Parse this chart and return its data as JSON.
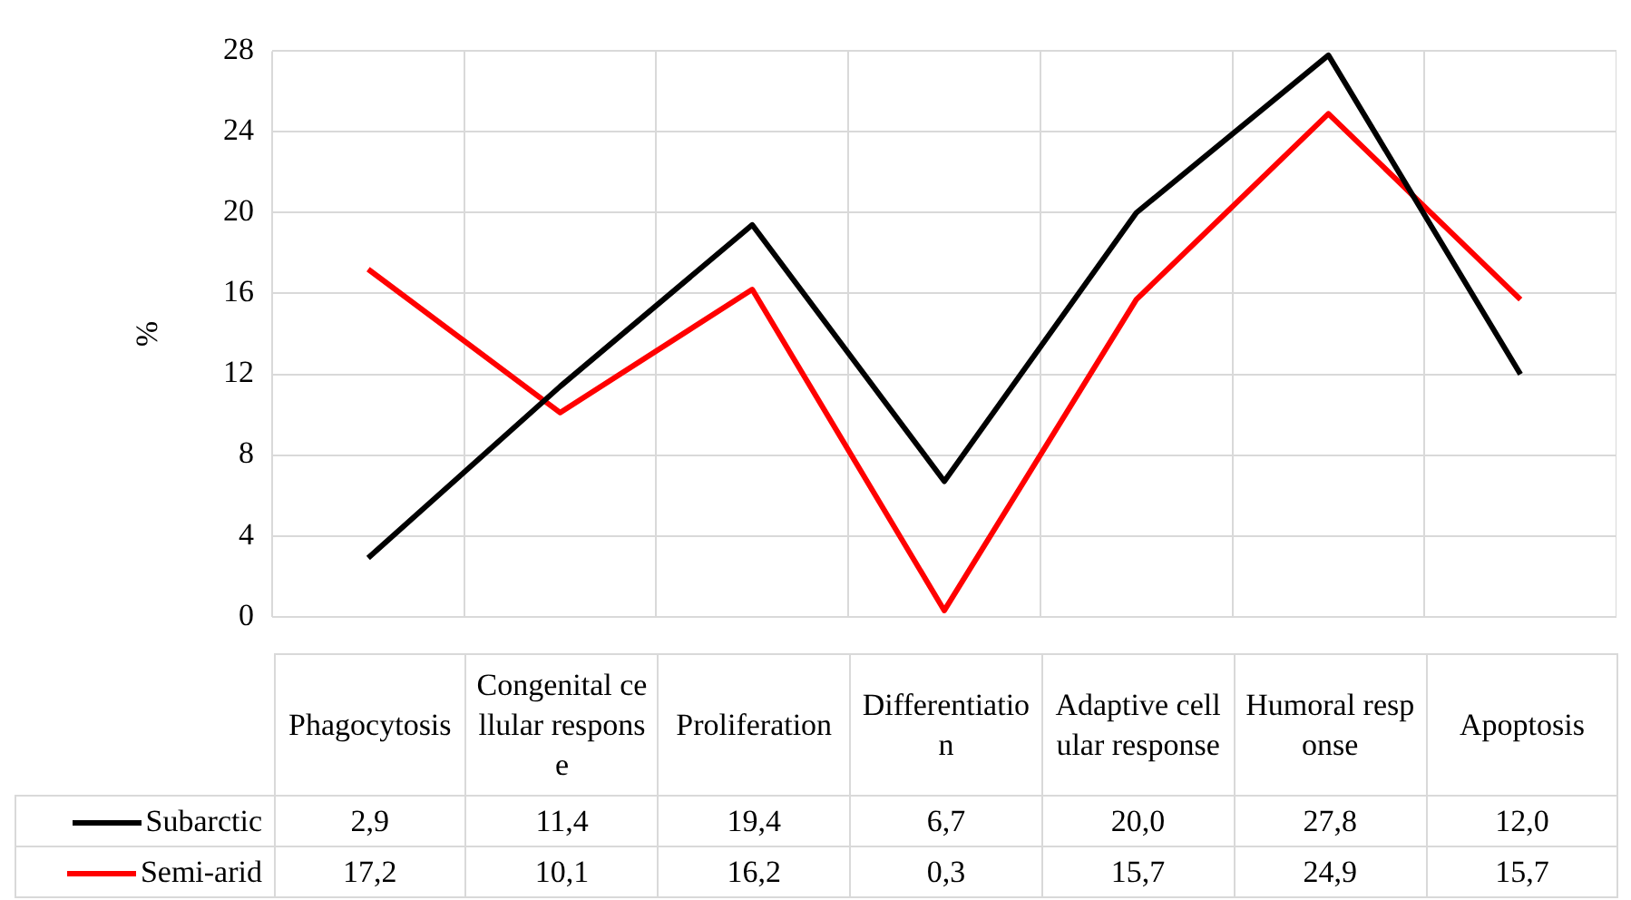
{
  "chart_data": {
    "type": "line",
    "ylabel": "%",
    "categories": [
      "Phagocytosis",
      "Congenital cellular response",
      "Proliferation",
      "Differentiation",
      "Adaptive cellular response",
      "Humoral response",
      "Apoptosis"
    ],
    "series": [
      {
        "name": "Subarctic",
        "color": "#000000",
        "values": [
          2.9,
          11.4,
          19.4,
          6.7,
          20.0,
          27.8,
          12.0
        ],
        "value_labels": [
          "2,9",
          "11,4",
          "19,4",
          "6,7",
          "20,0",
          "27,8",
          "12,0"
        ]
      },
      {
        "name": "Semi-arid",
        "color": "#ff0000",
        "values": [
          17.2,
          10.1,
          16.2,
          0.3,
          15.7,
          24.9,
          15.7
        ],
        "value_labels": [
          "17,2",
          "10,1",
          "16,2",
          "0,3",
          "15,7",
          "24,9",
          "15,7"
        ]
      }
    ],
    "ylim": [
      0,
      28
    ],
    "yticks": [
      0,
      4,
      8,
      12,
      16,
      20,
      24,
      28
    ],
    "grid": true,
    "legend": "bottom"
  }
}
